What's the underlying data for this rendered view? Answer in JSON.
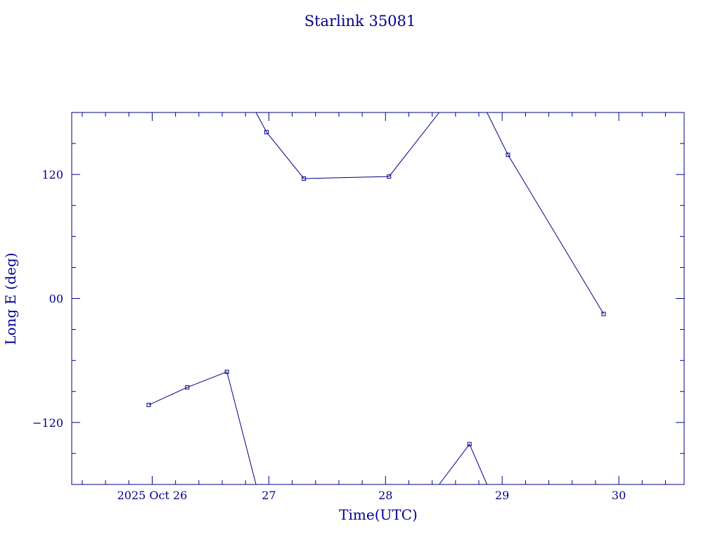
{
  "colors": {
    "ink": "#00008b",
    "background": "#ffffff"
  },
  "chart_data": {
    "type": "line",
    "title": "Starlink 35081",
    "xlabel": "Time(UTC)",
    "ylabel": "Long E (deg)",
    "x_unit": "days (2025 Oct 26 = 26)",
    "xlim": [
      25.31,
      30.56
    ],
    "ylim": [
      -180,
      180
    ],
    "grid": false,
    "x_ticks": [
      {
        "value": 26,
        "label": "2025 Oct 26"
      },
      {
        "value": 27,
        "label": "27"
      },
      {
        "value": 28,
        "label": "28"
      },
      {
        "value": 29,
        "label": "29"
      },
      {
        "value": 30,
        "label": "30"
      }
    ],
    "y_ticks": [
      {
        "value": 120,
        "label": "120"
      },
      {
        "value": 0,
        "label": "00"
      },
      {
        "value": -120,
        "label": "−120"
      }
    ],
    "series": [
      {
        "points": [
          [
            25.97,
            -103
          ],
          [
            26.3,
            -86
          ],
          [
            26.64,
            -71
          ],
          [
            26.89,
            -180
          ]
        ],
        "markers": [
          0,
          1,
          2
        ]
      },
      {
        "points": [
          [
            26.89,
            180
          ],
          [
            26.98,
            161
          ],
          [
            27.3,
            116
          ],
          [
            28.03,
            118
          ],
          [
            28.46,
            180
          ]
        ],
        "markers": [
          1,
          2,
          3
        ]
      },
      {
        "points": [
          [
            28.46,
            -180
          ],
          [
            28.72,
            -141
          ],
          [
            28.87,
            -180
          ]
        ],
        "markers": [
          1
        ]
      },
      {
        "points": [
          [
            28.87,
            180
          ],
          [
            29.05,
            139
          ],
          [
            29.87,
            -15
          ]
        ],
        "markers": [
          1,
          2
        ]
      }
    ]
  }
}
